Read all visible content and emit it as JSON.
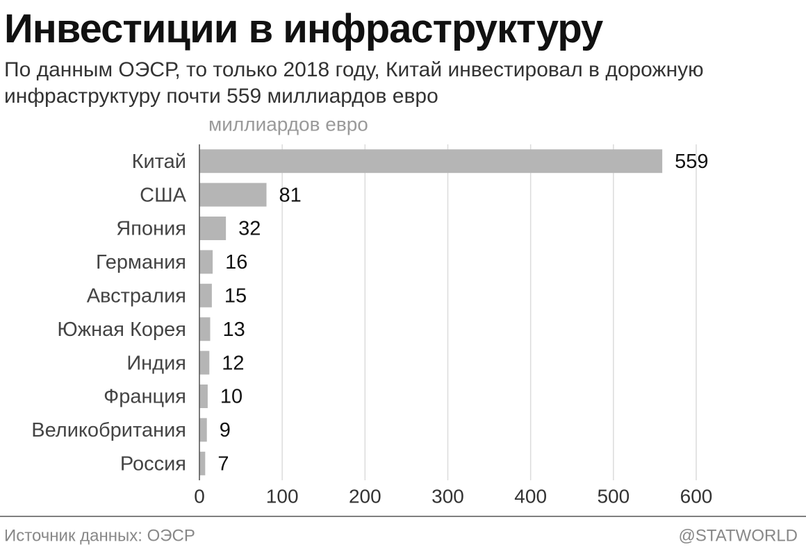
{
  "chart_data": {
    "type": "bar",
    "orientation": "horizontal",
    "title": "Инвестиции в инфраструктуру",
    "subtitle": "По данным ОЭСР, то только 2018 году, Китай инвестировал в дорожную инфраструктуру почти 559 миллиардов евро",
    "x_label": "миллиардов евро",
    "categories": [
      "Китай",
      "США",
      "Япония",
      "Германия",
      "Австралия",
      "Южная Корея",
      "Индия",
      "Франция",
      "Великобритания",
      "Россия"
    ],
    "values": [
      559,
      81,
      32,
      16,
      15,
      13,
      12,
      10,
      9,
      7
    ],
    "color": "#b5b5b5",
    "xlim": [
      0,
      600
    ],
    "xticks": [
      0,
      100,
      200,
      300,
      400,
      500,
      600
    ],
    "grid": true,
    "source": "Источник данных: ОЭСР",
    "credit": "@STATWORLD"
  }
}
